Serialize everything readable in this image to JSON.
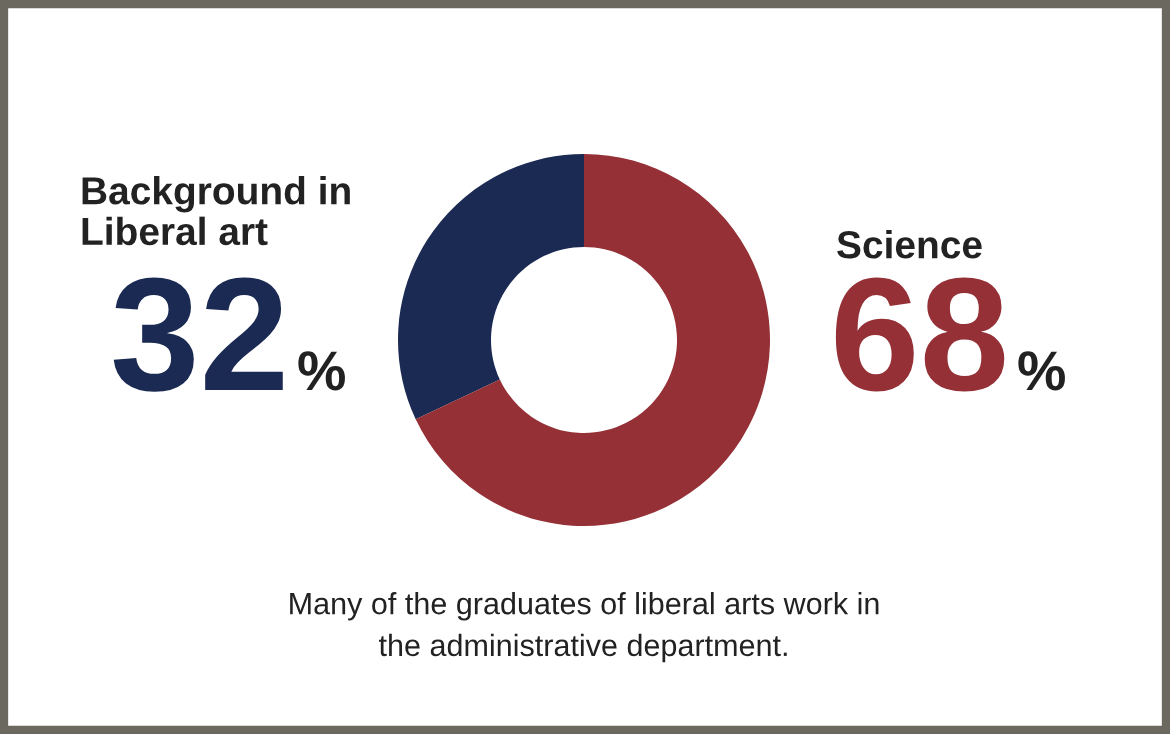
{
  "chart_data": {
    "type": "donut",
    "categories": [
      "Background in\nLiberal art",
      "Science"
    ],
    "values": [
      32,
      68
    ],
    "colors": [
      "#1b2a52",
      "#943036"
    ],
    "value_labels": [
      "32%",
      "68%"
    ],
    "annotations": [
      "Many of the graduates of liberal arts work in\nthe administrative department."
    ]
  }
}
